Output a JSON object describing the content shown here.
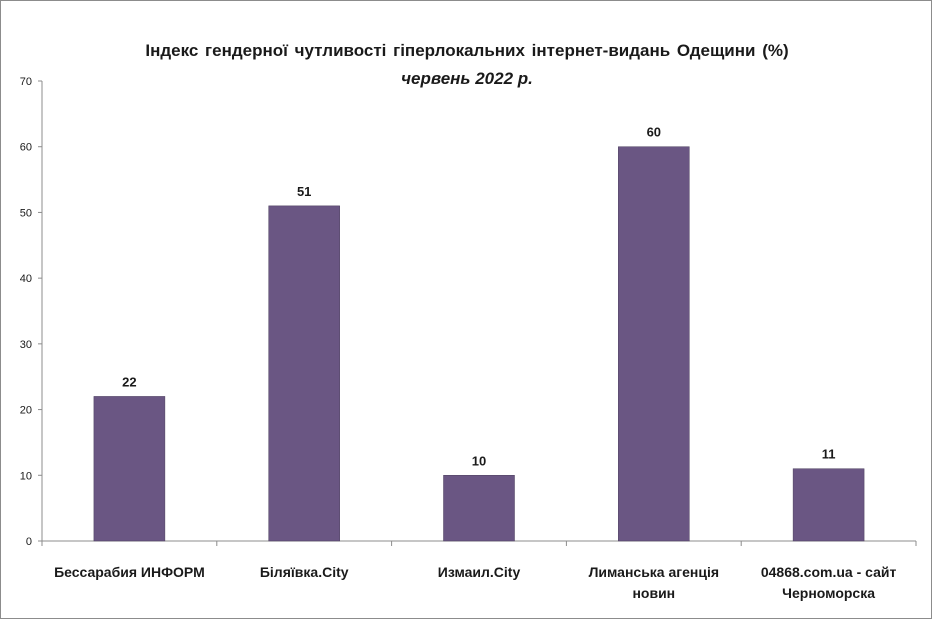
{
  "chart_data": {
    "type": "bar",
    "title": "Індекс гендерної чутливості гіперлокальних інтернет-видань Одещини (%)",
    "subtitle": "червень 2022 р.",
    "categories": [
      "Бессарабия ИНФОРМ",
      "Біляївка.City",
      "Измаил.City",
      "Лиманська агенція новин",
      "04868.com.ua - сайт Черноморска"
    ],
    "category_lines": [
      [
        "Бессарабия ИНФОРМ"
      ],
      [
        "Біляївка.City"
      ],
      [
        "Измаил.City"
      ],
      [
        "Лиманська агенція",
        "новин"
      ],
      [
        "04868.com.ua - сайт",
        "Черноморска"
      ]
    ],
    "values": [
      22,
      51,
      10,
      60,
      11
    ],
    "ylim": [
      0,
      70
    ],
    "yticks": [
      0,
      10,
      20,
      30,
      40,
      50,
      60,
      70
    ],
    "bar_color": "#6a5683",
    "data_labels": true,
    "grid": false,
    "legend": "none"
  }
}
